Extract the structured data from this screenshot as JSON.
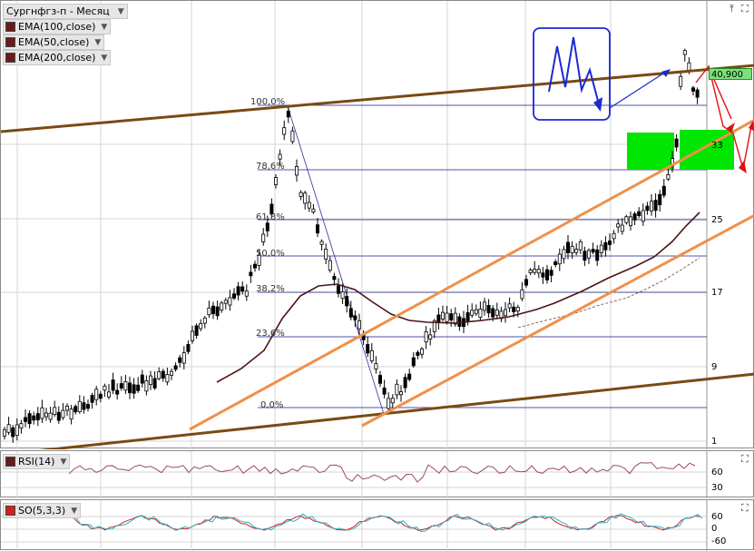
{
  "main": {
    "symbol_label": "Сургнфгз-п - Месяц",
    "indicators": [
      {
        "label": "EMA(100,close)",
        "color": "#6b1a1a"
      },
      {
        "label": "EMA(50,close)",
        "color": "#6b1a1a"
      },
      {
        "label": "EMA(200,close)",
        "color": "#6b1a1a"
      }
    ],
    "price_axis": [
      "33",
      "25",
      "17",
      "9",
      "1"
    ],
    "current_price": "40,900",
    "fib_levels": [
      "100,0%",
      "78,6%",
      "61,8%",
      "50,0%",
      "38,2%",
      "23,6%",
      "0,0%"
    ],
    "colors": {
      "trend_brown": "#7a4a12",
      "channel_orange": "#f0904a",
      "ema_dark": "#4a1414",
      "fib_blue": "#1a1a8c",
      "target_green": "#00e600",
      "arrow_red": "#e01010"
    }
  },
  "rsi": {
    "label": "RSI(14)",
    "axis": [
      "60",
      "30"
    ]
  },
  "so": {
    "label": "SO(5,3,3)",
    "axis": [
      "60",
      "0",
      "-60"
    ]
  },
  "chart_data": {
    "type": "candlestick",
    "timeframe": "Месяц",
    "ylim": [
      1,
      45
    ],
    "price_ticks": [
      33,
      25,
      17,
      9,
      1
    ],
    "last_price": 40.9,
    "series": [
      {
        "name": "EMA(100,close)",
        "type": "line"
      },
      {
        "name": "EMA(50,close)",
        "type": "line"
      },
      {
        "name": "EMA(200,close)",
        "type": "line"
      }
    ],
    "fibonacci": [
      "100,0%",
      "78,6%",
      "61,8%",
      "50,0%",
      "38,2%",
      "23,6%",
      "0,0%"
    ],
    "rsi_ticks": [
      60,
      30
    ],
    "so_ticks": [
      60,
      0,
      -60
    ]
  }
}
